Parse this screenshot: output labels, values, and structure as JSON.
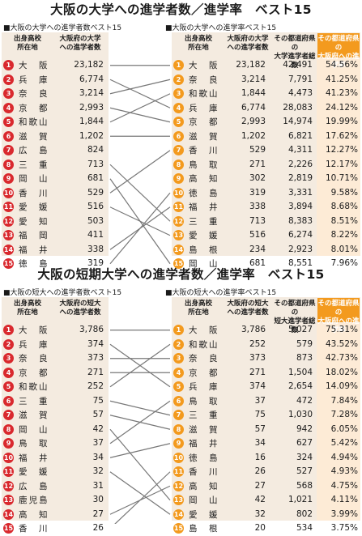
{
  "univ": {
    "title": "大阪の大学への進学者数／進学率　ベスト15",
    "left_caption": "■大阪の大学への進学者数ベスト15",
    "right_caption": "■大阪の大学への進学率ベスト15",
    "left_headers": [
      "出身高校\n所在地",
      "大阪府の大学\nへの進学者数"
    ],
    "right_headers": [
      "出身高校\n所在地",
      "大阪府の大学\nへの進学者数",
      "その都道府県の\n大学進学者総数",
      "その都道府県の\n大阪府への進学率"
    ],
    "left_rows": [
      {
        "rank": "1",
        "pref": "大　阪",
        "count": "23,182"
      },
      {
        "rank": "2",
        "pref": "兵　庫",
        "count": "6,774"
      },
      {
        "rank": "3",
        "pref": "奈　良",
        "count": "3,214"
      },
      {
        "rank": "4",
        "pref": "京　都",
        "count": "2,993"
      },
      {
        "rank": "5",
        "pref": "和歌山",
        "count": "1,844"
      },
      {
        "rank": "6",
        "pref": "滋　賀",
        "count": "1,202"
      },
      {
        "rank": "7",
        "pref": "広　島",
        "count": "824"
      },
      {
        "rank": "8",
        "pref": "三　重",
        "count": "713"
      },
      {
        "rank": "9",
        "pref": "岡　山",
        "count": "681"
      },
      {
        "rank": "10",
        "pref": "香　川",
        "count": "529"
      },
      {
        "rank": "11",
        "pref": "愛　媛",
        "count": "516"
      },
      {
        "rank": "12",
        "pref": "愛　知",
        "count": "503"
      },
      {
        "rank": "13",
        "pref": "福　岡",
        "count": "411"
      },
      {
        "rank": "14",
        "pref": "福　井",
        "count": "338"
      },
      {
        "rank": "15",
        "pref": "徳　島",
        "count": "319"
      }
    ],
    "right_rows": [
      {
        "rank": "1",
        "pref": "大　阪",
        "count": "23,182",
        "total": "42,491",
        "rate": "54.56%"
      },
      {
        "rank": "2",
        "pref": "奈　良",
        "count": "3,214",
        "total": "7,791",
        "rate": "41.25%"
      },
      {
        "rank": "3",
        "pref": "和歌山",
        "count": "1,844",
        "total": "4,473",
        "rate": "41.23%"
      },
      {
        "rank": "4",
        "pref": "兵　庫",
        "count": "6,774",
        "total": "28,083",
        "rate": "24.12%"
      },
      {
        "rank": "5",
        "pref": "京　都",
        "count": "2,993",
        "total": "14,974",
        "rate": "19.99%"
      },
      {
        "rank": "6",
        "pref": "滋　賀",
        "count": "1,202",
        "total": "6,821",
        "rate": "17.62%"
      },
      {
        "rank": "7",
        "pref": "香　川",
        "count": "529",
        "total": "4,311",
        "rate": "12.27%"
      },
      {
        "rank": "8",
        "pref": "鳥　取",
        "count": "271",
        "total": "2,226",
        "rate": "12.17%"
      },
      {
        "rank": "9",
        "pref": "高　知",
        "count": "302",
        "total": "2,819",
        "rate": "10.71%"
      },
      {
        "rank": "10",
        "pref": "徳　島",
        "count": "319",
        "total": "3,331",
        "rate": "9.58%"
      },
      {
        "rank": "11",
        "pref": "福　井",
        "count": "338",
        "total": "3,894",
        "rate": "8.68%"
      },
      {
        "rank": "12",
        "pref": "三　重",
        "count": "713",
        "total": "8,383",
        "rate": "8.51%"
      },
      {
        "rank": "13",
        "pref": "愛　媛",
        "count": "516",
        "total": "6,274",
        "rate": "8.22%"
      },
      {
        "rank": "14",
        "pref": "島　根",
        "count": "234",
        "total": "2,923",
        "rate": "8.01%"
      },
      {
        "rank": "15",
        "pref": "岡　山",
        "count": "681",
        "total": "8,551",
        "rate": "7.96%"
      }
    ],
    "links": [
      [
        1,
        1
      ],
      [
        2,
        4
      ],
      [
        3,
        2
      ],
      [
        4,
        5
      ],
      [
        5,
        3
      ],
      [
        6,
        6
      ],
      [
        8,
        12
      ],
      [
        9,
        15
      ],
      [
        10,
        7
      ],
      [
        11,
        13
      ],
      [
        14,
        11
      ],
      [
        15,
        10
      ]
    ]
  },
  "junior": {
    "title": "大阪の短期大学への進学者数／進学率　ベスト15",
    "left_caption": "■大阪の短大への進学者数ベスト15",
    "right_caption": "■大阪の短大への進学率ベスト15",
    "left_headers": [
      "出身高校\n所在地",
      "大阪府の短大\nへの進学者数"
    ],
    "right_headers": [
      "出身高校\n所在地",
      "大阪府の短大\nへの進学者数",
      "その都道府県の\n短大進学者総数",
      "その都道府県の\n大阪府への進学率"
    ],
    "left_rows": [
      {
        "rank": "1",
        "pref": "大　阪",
        "count": "3,786"
      },
      {
        "rank": "2",
        "pref": "兵　庫",
        "count": "374"
      },
      {
        "rank": "3",
        "pref": "奈　良",
        "count": "373"
      },
      {
        "rank": "4",
        "pref": "京　都",
        "count": "271"
      },
      {
        "rank": "5",
        "pref": "和歌山",
        "count": "252"
      },
      {
        "rank": "6",
        "pref": "三　重",
        "count": "75"
      },
      {
        "rank": "7",
        "pref": "滋　賀",
        "count": "57"
      },
      {
        "rank": "8",
        "pref": "岡　山",
        "count": "42"
      },
      {
        "rank": "9",
        "pref": "鳥　取",
        "count": "37"
      },
      {
        "rank": "10",
        "pref": "福　井",
        "count": "34"
      },
      {
        "rank": "11",
        "pref": "愛　媛",
        "count": "32"
      },
      {
        "rank": "12",
        "pref": "広　島",
        "count": "31"
      },
      {
        "rank": "13",
        "pref": "鹿児島",
        "count": "30"
      },
      {
        "rank": "14",
        "pref": "高　知",
        "count": "27"
      },
      {
        "rank": "15",
        "pref": "香　川",
        "count": "26"
      }
    ],
    "right_rows": [
      {
        "rank": "1",
        "pref": "大　阪",
        "count": "3,786",
        "total": "5,027",
        "rate": "75.31%"
      },
      {
        "rank": "2",
        "pref": "和歌山",
        "count": "252",
        "total": "579",
        "rate": "43.52%"
      },
      {
        "rank": "3",
        "pref": "奈　良",
        "count": "373",
        "total": "873",
        "rate": "42.73%"
      },
      {
        "rank": "4",
        "pref": "京　都",
        "count": "271",
        "total": "1,504",
        "rate": "18.02%"
      },
      {
        "rank": "5",
        "pref": "兵　庫",
        "count": "374",
        "total": "2,654",
        "rate": "14.09%"
      },
      {
        "rank": "6",
        "pref": "鳥　取",
        "count": "37",
        "total": "472",
        "rate": "7.84%"
      },
      {
        "rank": "7",
        "pref": "三　重",
        "count": "75",
        "total": "1,030",
        "rate": "7.28%"
      },
      {
        "rank": "8",
        "pref": "滋　賀",
        "count": "57",
        "total": "942",
        "rate": "6.05%"
      },
      {
        "rank": "9",
        "pref": "福　井",
        "count": "34",
        "total": "627",
        "rate": "5.42%"
      },
      {
        "rank": "10",
        "pref": "徳　島",
        "count": "16",
        "total": "324",
        "rate": "4.94%"
      },
      {
        "rank": "11",
        "pref": "香　川",
        "count": "26",
        "total": "527",
        "rate": "4.93%"
      },
      {
        "rank": "12",
        "pref": "高　知",
        "count": "27",
        "total": "568",
        "rate": "4.75%"
      },
      {
        "rank": "13",
        "pref": "岡　山",
        "count": "42",
        "total": "1,021",
        "rate": "4.11%"
      },
      {
        "rank": "14",
        "pref": "愛　媛",
        "count": "32",
        "total": "802",
        "rate": "3.99%"
      },
      {
        "rank": "15",
        "pref": "島　根",
        "count": "20",
        "total": "534",
        "rate": "3.75%"
      }
    ],
    "links": [
      [
        1,
        1
      ],
      [
        2,
        5
      ],
      [
        3,
        3
      ],
      [
        4,
        4
      ],
      [
        5,
        2
      ],
      [
        6,
        7
      ],
      [
        7,
        8
      ],
      [
        8,
        13
      ],
      [
        9,
        6
      ],
      [
        10,
        9
      ],
      [
        11,
        14
      ],
      [
        14,
        12
      ],
      [
        15,
        11
      ]
    ]
  },
  "colors": {
    "left_badge": "#d9292e",
    "right_badge": "#f39a1e",
    "panel": "#f4ebe0",
    "highlight": "#fdebd6",
    "line": "#777777"
  }
}
